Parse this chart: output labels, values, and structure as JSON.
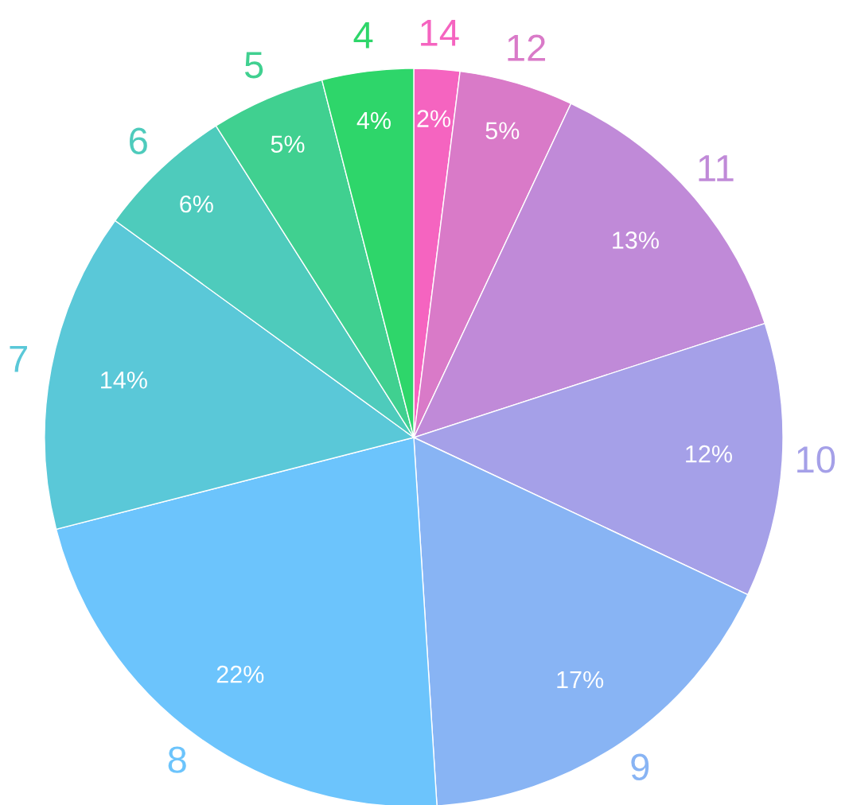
{
  "chart_data": {
    "type": "pie",
    "categories": [
      "14",
      "12",
      "11",
      "10",
      "9",
      "8",
      "7",
      "6",
      "5",
      "4"
    ],
    "values": [
      2,
      5,
      13,
      12,
      17,
      22,
      14,
      6,
      5,
      4
    ],
    "value_labels": [
      "2%",
      "5%",
      "13%",
      "12%",
      "17%",
      "22%",
      "14%",
      "6%",
      "5%",
      "4%"
    ],
    "colors": [
      "#f564c0",
      "#d97ac8",
      "#c08ad8",
      "#a5a0e8",
      "#88b4f4",
      "#6cc4fc",
      "#5ac8d8",
      "#4ecbbc",
      "#40d090",
      "#2ed66a"
    ],
    "legend": false
  }
}
